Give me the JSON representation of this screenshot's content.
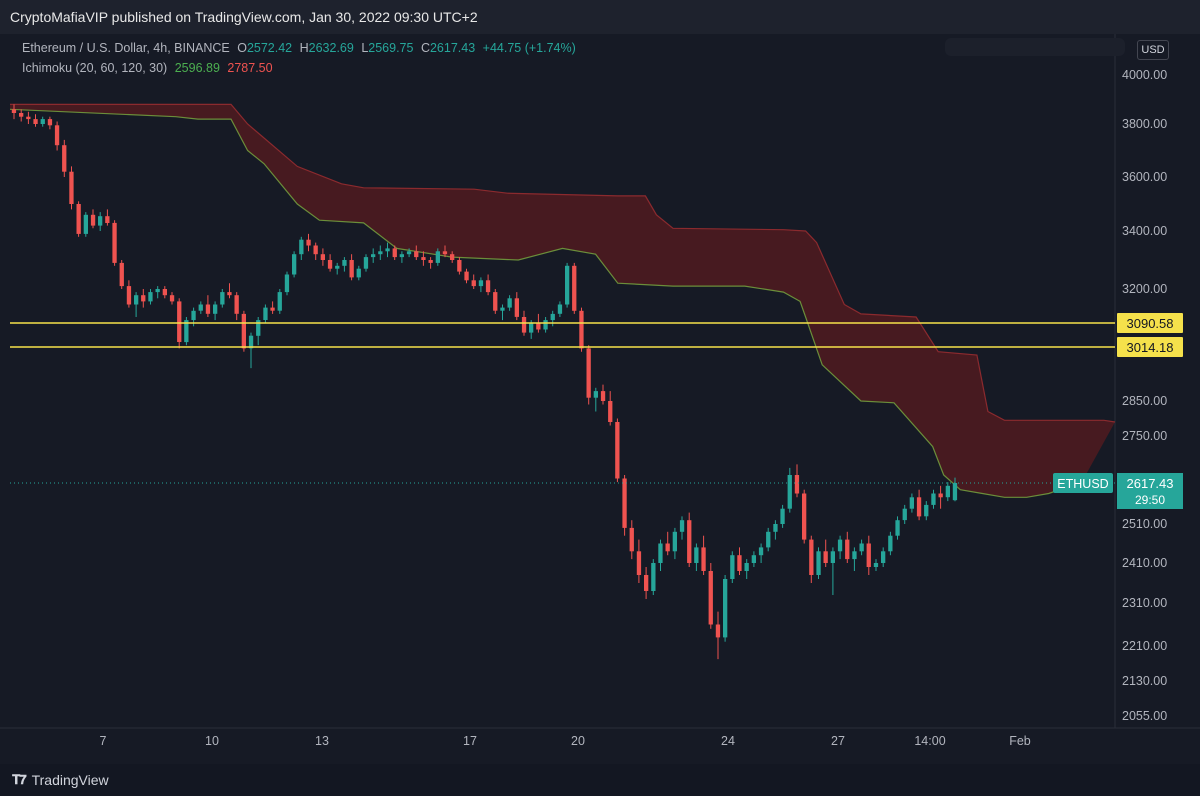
{
  "header": {
    "published": "CryptoMafiaVIP published on TradingView.com, Jan 30, 2022 09:30 UTC+2"
  },
  "legend": {
    "symbol": "Ethereum / U.S. Dollar, 4h, BINANCE",
    "o_label": "O",
    "o_value": "2572.42",
    "h_label": "H",
    "h_value": "2632.69",
    "l_label": "L",
    "l_value": "2569.75",
    "c_label": "C",
    "c_value": "2617.43",
    "change": "+44.75 (+1.74%)",
    "indicator": "Ichimoku (20, 60, 120, 30)",
    "ind_value1": "2596.89",
    "ind_value2": "2787.50"
  },
  "currency": "USD",
  "footer": {
    "brand": "TradingView"
  },
  "colors": {
    "up": "#26a69a",
    "down": "#ef5350",
    "cloud": "#4a1a20",
    "cloud_line_top": "#8b2a2e",
    "cloud_line_bottom": "#6b8e3a",
    "level": "#f5e14b",
    "bg": "#161a25"
  },
  "chart_data": {
    "type": "candlestick",
    "title": "Ethereum / U.S. Dollar, 4h, BINANCE",
    "y_ticks": [
      "4000.00",
      "3800.00",
      "3600.00",
      "3400.00",
      "3200.00",
      "2850.00",
      "2750.00",
      "2510.00",
      "2410.00",
      "2310.00",
      "2210.00",
      "2130.00",
      "2055.00"
    ],
    "x_ticks": [
      "7",
      "10",
      "13",
      "17",
      "20",
      "24",
      "27",
      "14:00",
      "Feb"
    ],
    "horizontal_levels": [
      {
        "price": "3090.58",
        "value": 3090.58
      },
      {
        "price": "3014.18",
        "value": 3014.18
      }
    ],
    "current_price_label": {
      "symbol": "ETHUSD",
      "price": "2617.43",
      "countdown": "29:50",
      "value": 2617.43
    },
    "cloud_top": [
      [
        0,
        3880
      ],
      [
        0.2,
        3880
      ],
      [
        0.215,
        3800
      ],
      [
        0.26,
        3640
      ],
      [
        0.3,
        3575
      ],
      [
        0.32,
        3560
      ],
      [
        0.42,
        3555
      ],
      [
        0.45,
        3540
      ],
      [
        0.55,
        3530
      ],
      [
        0.575,
        3530
      ],
      [
        0.585,
        3460
      ],
      [
        0.6,
        3410
      ],
      [
        0.7,
        3405
      ],
      [
        0.72,
        3400
      ],
      [
        0.73,
        3360
      ],
      [
        0.755,
        3150
      ],
      [
        0.77,
        3120
      ],
      [
        0.82,
        3110
      ],
      [
        0.84,
        3000
      ],
      [
        0.875,
        2990
      ],
      [
        0.885,
        2820
      ],
      [
        0.9,
        2795
      ],
      [
        0.99,
        2795
      ],
      [
        1,
        2790
      ]
    ],
    "cloud_bottom": [
      [
        0,
        3860
      ],
      [
        0.15,
        3830
      ],
      [
        0.17,
        3820
      ],
      [
        0.2,
        3820
      ],
      [
        0.215,
        3700
      ],
      [
        0.23,
        3650
      ],
      [
        0.26,
        3500
      ],
      [
        0.28,
        3440
      ],
      [
        0.32,
        3430
      ],
      [
        0.35,
        3340
      ],
      [
        0.4,
        3310
      ],
      [
        0.46,
        3300
      ],
      [
        0.5,
        3340
      ],
      [
        0.53,
        3320
      ],
      [
        0.55,
        3220
      ],
      [
        0.6,
        3210
      ],
      [
        0.665,
        3210
      ],
      [
        0.7,
        3190
      ],
      [
        0.715,
        3160
      ],
      [
        0.72,
        3110
      ],
      [
        0.735,
        2960
      ],
      [
        0.77,
        2850
      ],
      [
        0.8,
        2845
      ],
      [
        0.835,
        2720
      ],
      [
        0.845,
        2640
      ],
      [
        0.86,
        2600
      ],
      [
        0.88,
        2590
      ],
      [
        0.9,
        2580
      ],
      [
        0.92,
        2580
      ],
      [
        0.94,
        2590
      ],
      [
        0.97,
        2620
      ]
    ],
    "candles": [
      [
        3860,
        3880,
        3820,
        3845
      ],
      [
        3845,
        3860,
        3810,
        3830
      ],
      [
        3830,
        3850,
        3800,
        3820
      ],
      [
        3820,
        3840,
        3790,
        3800
      ],
      [
        3800,
        3830,
        3790,
        3820
      ],
      [
        3820,
        3830,
        3780,
        3795
      ],
      [
        3795,
        3810,
        3700,
        3720
      ],
      [
        3720,
        3740,
        3600,
        3620
      ],
      [
        3620,
        3640,
        3480,
        3500
      ],
      [
        3500,
        3510,
        3380,
        3390
      ],
      [
        3390,
        3470,
        3380,
        3460
      ],
      [
        3460,
        3480,
        3410,
        3420
      ],
      [
        3420,
        3470,
        3400,
        3455
      ],
      [
        3455,
        3480,
        3420,
        3430
      ],
      [
        3430,
        3440,
        3280,
        3290
      ],
      [
        3290,
        3300,
        3200,
        3210
      ],
      [
        3210,
        3230,
        3140,
        3150
      ],
      [
        3150,
        3190,
        3110,
        3180
      ],
      [
        3180,
        3200,
        3140,
        3160
      ],
      [
        3160,
        3200,
        3150,
        3190
      ],
      [
        3190,
        3210,
        3170,
        3200
      ],
      [
        3200,
        3210,
        3170,
        3180
      ],
      [
        3180,
        3190,
        3150,
        3160
      ],
      [
        3160,
        3170,
        3010,
        3030
      ],
      [
        3030,
        3110,
        3020,
        3100
      ],
      [
        3100,
        3140,
        3080,
        3130
      ],
      [
        3130,
        3160,
        3120,
        3150
      ],
      [
        3150,
        3180,
        3110,
        3120
      ],
      [
        3120,
        3160,
        3100,
        3150
      ],
      [
        3150,
        3200,
        3140,
        3190
      ],
      [
        3190,
        3220,
        3170,
        3180
      ],
      [
        3180,
        3190,
        3100,
        3120
      ],
      [
        3120,
        3130,
        3000,
        3010
      ],
      [
        3010,
        3060,
        2950,
        3050
      ],
      [
        3050,
        3110,
        3020,
        3100
      ],
      [
        3100,
        3150,
        3090,
        3140
      ],
      [
        3140,
        3160,
        3120,
        3130
      ],
      [
        3130,
        3200,
        3120,
        3190
      ],
      [
        3190,
        3260,
        3180,
        3250
      ],
      [
        3250,
        3330,
        3240,
        3320
      ],
      [
        3320,
        3380,
        3300,
        3370
      ],
      [
        3370,
        3390,
        3330,
        3350
      ],
      [
        3350,
        3360,
        3300,
        3320
      ],
      [
        3320,
        3340,
        3280,
        3300
      ],
      [
        3300,
        3320,
        3260,
        3270
      ],
      [
        3270,
        3290,
        3250,
        3280
      ],
      [
        3280,
        3310,
        3260,
        3300
      ],
      [
        3300,
        3320,
        3230,
        3240
      ],
      [
        3240,
        3280,
        3230,
        3270
      ],
      [
        3270,
        3320,
        3260,
        3310
      ],
      [
        3310,
        3340,
        3290,
        3320
      ],
      [
        3320,
        3350,
        3300,
        3330
      ],
      [
        3330,
        3360,
        3310,
        3340
      ],
      [
        3340,
        3350,
        3300,
        3310
      ],
      [
        3310,
        3330,
        3290,
        3320
      ],
      [
        3320,
        3340,
        3310,
        3330
      ],
      [
        3330,
        3350,
        3300,
        3310
      ],
      [
        3310,
        3330,
        3280,
        3300
      ],
      [
        3300,
        3310,
        3270,
        3290
      ],
      [
        3290,
        3340,
        3280,
        3330
      ],
      [
        3330,
        3350,
        3310,
        3320
      ],
      [
        3320,
        3330,
        3290,
        3300
      ],
      [
        3300,
        3310,
        3250,
        3260
      ],
      [
        3260,
        3270,
        3220,
        3230
      ],
      [
        3230,
        3250,
        3200,
        3210
      ],
      [
        3210,
        3240,
        3190,
        3230
      ],
      [
        3230,
        3250,
        3180,
        3190
      ],
      [
        3190,
        3200,
        3120,
        3130
      ],
      [
        3130,
        3150,
        3100,
        3140
      ],
      [
        3140,
        3180,
        3130,
        3170
      ],
      [
        3170,
        3190,
        3100,
        3110
      ],
      [
        3110,
        3130,
        3050,
        3060
      ],
      [
        3060,
        3100,
        3040,
        3090
      ],
      [
        3090,
        3120,
        3060,
        3070
      ],
      [
        3070,
        3110,
        3060,
        3100
      ],
      [
        3100,
        3130,
        3080,
        3120
      ],
      [
        3120,
        3160,
        3110,
        3150
      ],
      [
        3150,
        3290,
        3140,
        3280
      ],
      [
        3280,
        3290,
        3120,
        3130
      ],
      [
        3130,
        3140,
        3000,
        3010
      ],
      [
        3010,
        3020,
        2840,
        2860
      ],
      [
        2860,
        2890,
        2820,
        2880
      ],
      [
        2880,
        2900,
        2840,
        2850
      ],
      [
        2850,
        2880,
        2780,
        2790
      ],
      [
        2790,
        2800,
        2620,
        2630
      ],
      [
        2630,
        2640,
        2480,
        2500
      ],
      [
        2500,
        2520,
        2420,
        2440
      ],
      [
        2440,
        2470,
        2360,
        2380
      ],
      [
        2380,
        2400,
        2320,
        2340
      ],
      [
        2340,
        2420,
        2330,
        2410
      ],
      [
        2410,
        2470,
        2390,
        2460
      ],
      [
        2460,
        2490,
        2430,
        2440
      ],
      [
        2440,
        2500,
        2420,
        2490
      ],
      [
        2490,
        2530,
        2470,
        2520
      ],
      [
        2520,
        2540,
        2400,
        2410
      ],
      [
        2410,
        2460,
        2390,
        2450
      ],
      [
        2450,
        2480,
        2380,
        2390
      ],
      [
        2390,
        2410,
        2250,
        2260
      ],
      [
        2260,
        2290,
        2180,
        2230
      ],
      [
        2230,
        2380,
        2220,
        2370
      ],
      [
        2370,
        2440,
        2360,
        2430
      ],
      [
        2430,
        2450,
        2380,
        2390
      ],
      [
        2390,
        2420,
        2370,
        2410
      ],
      [
        2410,
        2440,
        2400,
        2430
      ],
      [
        2430,
        2460,
        2410,
        2450
      ],
      [
        2450,
        2500,
        2440,
        2490
      ],
      [
        2490,
        2520,
        2470,
        2510
      ],
      [
        2510,
        2560,
        2500,
        2550
      ],
      [
        2550,
        2660,
        2540,
        2640
      ],
      [
        2640,
        2670,
        2580,
        2590
      ],
      [
        2590,
        2600,
        2460,
        2470
      ],
      [
        2470,
        2480,
        2360,
        2380
      ],
      [
        2380,
        2450,
        2370,
        2440
      ],
      [
        2440,
        2470,
        2400,
        2410
      ],
      [
        2410,
        2450,
        2330,
        2440
      ],
      [
        2440,
        2480,
        2420,
        2470
      ],
      [
        2470,
        2490,
        2410,
        2420
      ],
      [
        2420,
        2450,
        2390,
        2440
      ],
      [
        2440,
        2470,
        2430,
        2460
      ],
      [
        2460,
        2480,
        2380,
        2400
      ],
      [
        2400,
        2420,
        2390,
        2410
      ],
      [
        2410,
        2450,
        2400,
        2440
      ],
      [
        2440,
        2490,
        2430,
        2480
      ],
      [
        2480,
        2530,
        2470,
        2520
      ],
      [
        2520,
        2560,
        2510,
        2550
      ],
      [
        2550,
        2590,
        2540,
        2580
      ],
      [
        2580,
        2600,
        2520,
        2530
      ],
      [
        2530,
        2570,
        2520,
        2560
      ],
      [
        2560,
        2600,
        2550,
        2590
      ],
      [
        2590,
        2610,
        2550,
        2580
      ],
      [
        2580,
        2620,
        2570,
        2610
      ],
      [
        2572.42,
        2632.69,
        2569.75,
        2617.43
      ]
    ]
  }
}
